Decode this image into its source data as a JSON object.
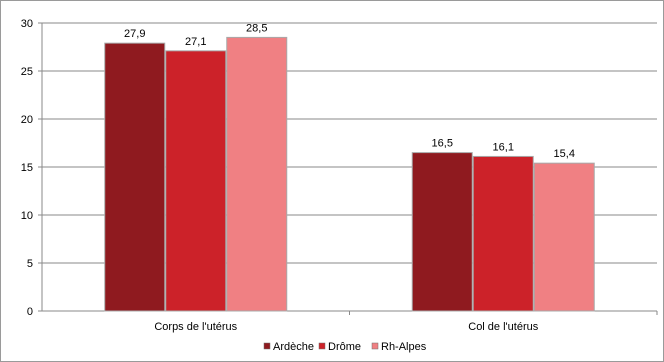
{
  "chart_data": {
    "type": "bar",
    "categories": [
      "Corps de l'utérus",
      "Col de l'utérus"
    ],
    "series": [
      {
        "name": "Ardèche",
        "color": "#8f1a1f",
        "values": [
          27.9,
          16.5
        ]
      },
      {
        "name": "Drôme",
        "color": "#cc2229",
        "values": [
          27.1,
          16.1
        ]
      },
      {
        "name": "Rh-Alpes",
        "color": "#f08083",
        "values": [
          28.5,
          15.4
        ]
      }
    ],
    "data_labels": [
      [
        "27,9",
        "16,5"
      ],
      [
        "27,1",
        "16,1"
      ],
      [
        "28,5",
        "15,4"
      ]
    ],
    "ylim": [
      0,
      30
    ],
    "yticks": [
      0,
      5,
      10,
      15,
      20,
      25,
      30
    ],
    "ytick_labels": [
      "0",
      "5",
      "10",
      "15",
      "20",
      "25",
      "30"
    ],
    "grid": true,
    "legend_position": "bottom",
    "title": "",
    "xlabel": "",
    "ylabel": ""
  }
}
